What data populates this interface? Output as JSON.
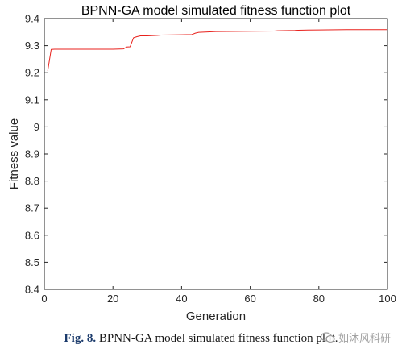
{
  "chart_data": {
    "type": "line",
    "title": "BPNN-GA model simulated fitness function plot",
    "xlabel": "Generation",
    "ylabel": "Fitness value",
    "xlim": [
      0,
      100
    ],
    "ylim": [
      8.4,
      9.4
    ],
    "xticks": [
      "0",
      "20",
      "40",
      "60",
      "80",
      "100"
    ],
    "yticks": [
      "8.4",
      "8.5",
      "8.6",
      "8.7",
      "8.8",
      "8.9",
      "9",
      "9.1",
      "9.2",
      "9.3",
      "9.4"
    ],
    "grid": false,
    "series": [
      {
        "color": "#e8211c",
        "x": [
          1,
          2,
          3,
          10,
          20,
          23,
          24,
          25,
          26,
          27,
          28,
          30,
          33,
          34,
          40,
          43,
          44,
          45,
          47,
          50,
          60,
          67,
          68,
          73,
          74,
          80,
          88,
          100
        ],
        "y": [
          9.207,
          9.286,
          9.287,
          9.287,
          9.287,
          9.288,
          9.295,
          9.296,
          9.329,
          9.333,
          9.336,
          9.336,
          9.338,
          9.339,
          9.34,
          9.341,
          9.346,
          9.349,
          9.35,
          9.352,
          9.353,
          9.354,
          9.355,
          9.356,
          9.357,
          9.358,
          9.359,
          9.359
        ]
      }
    ]
  },
  "caption": {
    "label": "Fig. 8.",
    "text": "BPNN-GA model simulated fitness function plot."
  },
  "watermark": {
    "text": "如沐风科研"
  },
  "colors": {
    "line": "#e8211c",
    "axis": "#262626",
    "caption_label": "#1a3a6b"
  }
}
